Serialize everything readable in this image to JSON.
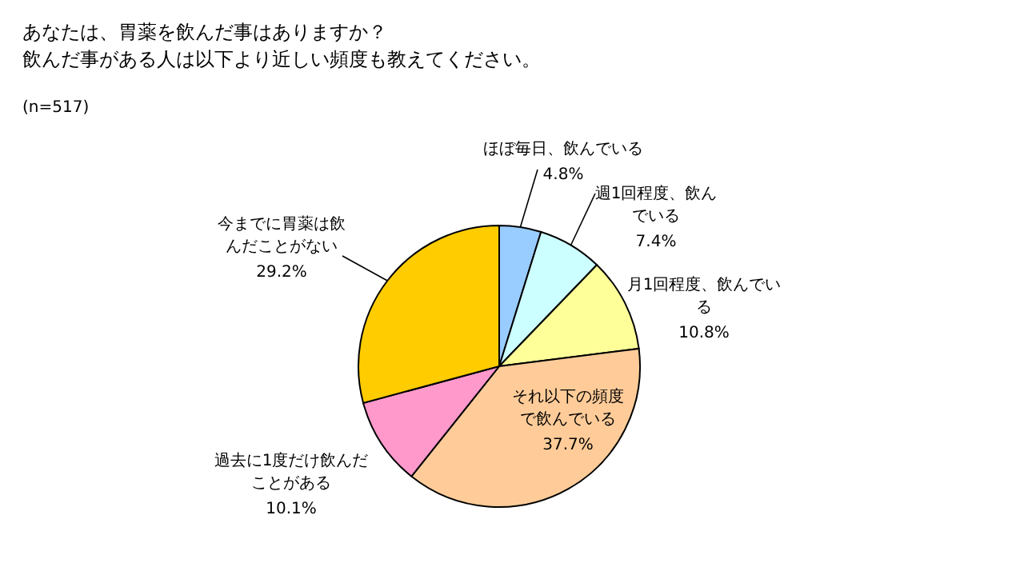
{
  "chart_data": {
    "type": "pie",
    "title": "あなたは、胃薬を飲んだ事はありますか？",
    "subtitle": "飲んだ事がある人は以下より近しい頻度も教えてください。",
    "annotations": [
      "(n=517)"
    ],
    "categories": [
      "ほぼ毎日、飲んでいる",
      "週1回程度、飲んでいる",
      "月1回程度、飲んでいる",
      "それ以下の頻度で飲んでいる",
      "過去に1度だけ飲んだことがある",
      "今までに胃薬は飲んだことがない"
    ],
    "values": [
      4.8,
      7.4,
      10.8,
      37.7,
      10.1,
      29.2
    ],
    "value_labels": [
      "4.8%",
      "7.4%",
      "10.8%",
      "37.7%",
      "10.1%",
      "29.2%"
    ],
    "colors": [
      "#99ccff",
      "#ccffff",
      "#ffff99",
      "#ffcc99",
      "#ff99cc",
      "#ffcc00"
    ]
  }
}
